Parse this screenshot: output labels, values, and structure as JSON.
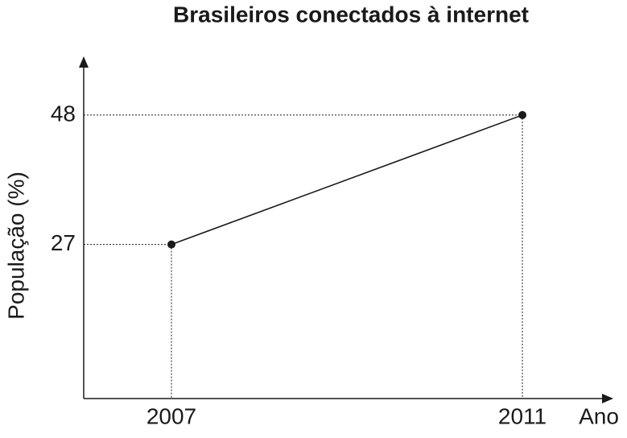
{
  "chart_data": {
    "type": "line",
    "title": "Brasileiros conectados à internet",
    "x_label": "Ano",
    "y_label": "População (%)",
    "x": [
      2007,
      2011
    ],
    "values": [
      27,
      48
    ],
    "color": "#1a1a1a",
    "xlim": [
      2006,
      2012
    ],
    "ylim": [
      2,
      57
    ],
    "xticks": [
      2007,
      2011
    ],
    "yticks": [
      27,
      48
    ]
  }
}
